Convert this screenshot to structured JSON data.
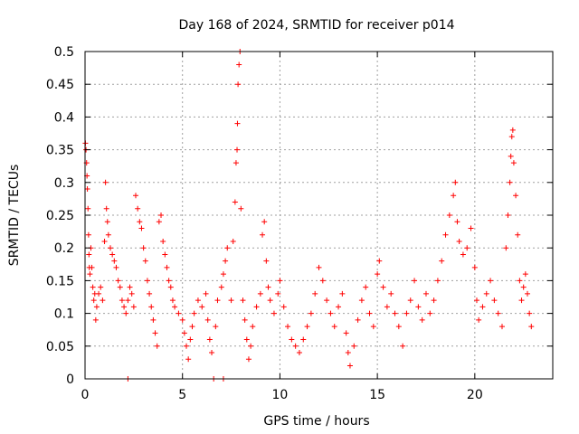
{
  "chart_data": {
    "type": "scatter",
    "title": "Day 168 of 2024, SRMTID for receiver p014",
    "xlabel": "GPS time / hours",
    "ylabel": "SRMTID / TECUs",
    "xlim": [
      0,
      24
    ],
    "ylim": [
      0,
      0.5
    ],
    "grid": true,
    "marker": "plus",
    "marker_color": "#ff0000",
    "x_ticks": [
      {
        "value": 0,
        "label": "0"
      },
      {
        "value": 5,
        "label": "5"
      },
      {
        "value": 10,
        "label": "10"
      },
      {
        "value": 15,
        "label": "15"
      },
      {
        "value": 20,
        "label": "20"
      }
    ],
    "y_ticks": [
      {
        "value": 0,
        "label": "0"
      },
      {
        "value": 0.05,
        "label": "0.05"
      },
      {
        "value": 0.1,
        "label": "0.1"
      },
      {
        "value": 0.15,
        "label": "0.15"
      },
      {
        "value": 0.2,
        "label": "0.2"
      },
      {
        "value": 0.25,
        "label": "0.25"
      },
      {
        "value": 0.3,
        "label": "0.3"
      },
      {
        "value": 0.35,
        "label": "0.35"
      },
      {
        "value": 0.4,
        "label": "0.4"
      },
      {
        "value": 0.45,
        "label": "0.45"
      },
      {
        "value": 0.5,
        "label": "0.5"
      }
    ],
    "series": [
      {
        "name": "SRMTID",
        "points": [
          [
            0.02,
            0.36
          ],
          [
            0.05,
            0.35
          ],
          [
            0.08,
            0.33
          ],
          [
            0.1,
            0.31
          ],
          [
            0.12,
            0.29
          ],
          [
            0.15,
            0.26
          ],
          [
            0.18,
            0.22
          ],
          [
            0.2,
            0.19
          ],
          [
            0.22,
            0.17
          ],
          [
            0.25,
            0.16
          ],
          [
            0.3,
            0.2
          ],
          [
            0.35,
            0.17
          ],
          [
            0.4,
            0.14
          ],
          [
            0.45,
            0.12
          ],
          [
            0.5,
            0.13
          ],
          [
            0.55,
            0.09
          ],
          [
            0.6,
            0.11
          ],
          [
            0.7,
            0.13
          ],
          [
            0.8,
            0.14
          ],
          [
            0.9,
            0.12
          ],
          [
            1.0,
            0.21
          ],
          [
            1.05,
            0.3
          ],
          [
            1.1,
            0.26
          ],
          [
            1.15,
            0.24
          ],
          [
            1.2,
            0.22
          ],
          [
            1.3,
            0.2
          ],
          [
            1.4,
            0.19
          ],
          [
            1.5,
            0.18
          ],
          [
            1.6,
            0.17
          ],
          [
            1.7,
            0.15
          ],
          [
            1.8,
            0.14
          ],
          [
            1.9,
            0.12
          ],
          [
            2.0,
            0.11
          ],
          [
            2.1,
            0.1
          ],
          [
            2.2,
            0.12
          ],
          [
            2.3,
            0.14
          ],
          [
            2.2,
            0.0
          ],
          [
            2.4,
            0.13
          ],
          [
            2.5,
            0.11
          ],
          [
            2.6,
            0.28
          ],
          [
            2.7,
            0.26
          ],
          [
            2.8,
            0.24
          ],
          [
            2.9,
            0.23
          ],
          [
            3.0,
            0.2
          ],
          [
            3.1,
            0.18
          ],
          [
            3.2,
            0.15
          ],
          [
            3.3,
            0.13
          ],
          [
            3.4,
            0.11
          ],
          [
            3.5,
            0.09
          ],
          [
            3.6,
            0.07
          ],
          [
            3.7,
            0.05
          ],
          [
            3.8,
            0.24
          ],
          [
            3.9,
            0.25
          ],
          [
            4.0,
            0.21
          ],
          [
            4.1,
            0.19
          ],
          [
            4.2,
            0.17
          ],
          [
            4.3,
            0.15
          ],
          [
            4.4,
            0.14
          ],
          [
            4.5,
            0.12
          ],
          [
            4.6,
            0.11
          ],
          [
            4.8,
            0.1
          ],
          [
            5.0,
            0.09
          ],
          [
            5.1,
            0.07
          ],
          [
            5.2,
            0.05
          ],
          [
            5.3,
            0.03
          ],
          [
            5.4,
            0.06
          ],
          [
            5.5,
            0.08
          ],
          [
            5.6,
            0.1
          ],
          [
            5.8,
            0.12
          ],
          [
            6.0,
            0.11
          ],
          [
            6.2,
            0.13
          ],
          [
            6.3,
            0.09
          ],
          [
            6.4,
            0.06
          ],
          [
            6.5,
            0.04
          ],
          [
            6.6,
            0.0
          ],
          [
            6.7,
            0.08
          ],
          [
            6.8,
            0.12
          ],
          [
            7.0,
            0.14
          ],
          [
            7.1,
            0.16
          ],
          [
            7.2,
            0.18
          ],
          [
            7.3,
            0.2
          ],
          [
            7.1,
            0.0
          ],
          [
            7.5,
            0.12
          ],
          [
            7.6,
            0.21
          ],
          [
            7.7,
            0.27
          ],
          [
            7.75,
            0.33
          ],
          [
            7.8,
            0.35
          ],
          [
            7.82,
            0.39
          ],
          [
            7.85,
            0.45
          ],
          [
            7.9,
            0.48
          ],
          [
            7.95,
            0.5
          ],
          [
            8.0,
            0.26
          ],
          [
            8.1,
            0.12
          ],
          [
            8.2,
            0.09
          ],
          [
            8.3,
            0.06
          ],
          [
            8.4,
            0.03
          ],
          [
            8.5,
            0.05
          ],
          [
            8.6,
            0.08
          ],
          [
            8.8,
            0.11
          ],
          [
            9.0,
            0.13
          ],
          [
            9.1,
            0.22
          ],
          [
            9.2,
            0.24
          ],
          [
            9.3,
            0.18
          ],
          [
            9.4,
            0.14
          ],
          [
            9.5,
            0.12
          ],
          [
            9.7,
            0.1
          ],
          [
            9.9,
            0.13
          ],
          [
            10.0,
            0.15
          ],
          [
            10.2,
            0.11
          ],
          [
            10.4,
            0.08
          ],
          [
            10.6,
            0.06
          ],
          [
            10.8,
            0.05
          ],
          [
            11.0,
            0.04
          ],
          [
            11.2,
            0.06
          ],
          [
            11.4,
            0.08
          ],
          [
            11.6,
            0.1
          ],
          [
            11.8,
            0.13
          ],
          [
            12.0,
            0.17
          ],
          [
            12.2,
            0.15
          ],
          [
            12.4,
            0.12
          ],
          [
            12.6,
            0.1
          ],
          [
            12.8,
            0.08
          ],
          [
            13.0,
            0.11
          ],
          [
            13.2,
            0.13
          ],
          [
            13.4,
            0.07
          ],
          [
            13.5,
            0.04
          ],
          [
            13.6,
            0.02
          ],
          [
            13.8,
            0.05
          ],
          [
            14.0,
            0.09
          ],
          [
            14.2,
            0.12
          ],
          [
            14.4,
            0.14
          ],
          [
            14.6,
            0.1
          ],
          [
            14.8,
            0.08
          ],
          [
            15.0,
            0.16
          ],
          [
            15.1,
            0.18
          ],
          [
            15.3,
            0.14
          ],
          [
            15.5,
            0.11
          ],
          [
            15.7,
            0.13
          ],
          [
            15.9,
            0.1
          ],
          [
            16.1,
            0.08
          ],
          [
            16.3,
            0.05
          ],
          [
            16.5,
            0.1
          ],
          [
            16.7,
            0.12
          ],
          [
            16.9,
            0.15
          ],
          [
            17.1,
            0.11
          ],
          [
            17.3,
            0.09
          ],
          [
            17.5,
            0.13
          ],
          [
            17.7,
            0.1
          ],
          [
            17.9,
            0.12
          ],
          [
            18.1,
            0.15
          ],
          [
            18.3,
            0.18
          ],
          [
            18.5,
            0.22
          ],
          [
            18.7,
            0.25
          ],
          [
            18.9,
            0.28
          ],
          [
            19.0,
            0.3
          ],
          [
            19.1,
            0.24
          ],
          [
            19.2,
            0.21
          ],
          [
            19.4,
            0.19
          ],
          [
            19.6,
            0.2
          ],
          [
            19.8,
            0.23
          ],
          [
            20.0,
            0.17
          ],
          [
            20.1,
            0.12
          ],
          [
            20.2,
            0.09
          ],
          [
            20.4,
            0.11
          ],
          [
            20.6,
            0.13
          ],
          [
            20.8,
            0.15
          ],
          [
            21.0,
            0.12
          ],
          [
            21.2,
            0.1
          ],
          [
            21.4,
            0.08
          ],
          [
            21.6,
            0.2
          ],
          [
            21.7,
            0.25
          ],
          [
            21.8,
            0.3
          ],
          [
            21.85,
            0.34
          ],
          [
            21.9,
            0.37
          ],
          [
            21.95,
            0.38
          ],
          [
            22.0,
            0.33
          ],
          [
            22.1,
            0.28
          ],
          [
            22.2,
            0.22
          ],
          [
            22.3,
            0.15
          ],
          [
            22.4,
            0.12
          ],
          [
            22.5,
            0.14
          ],
          [
            22.6,
            0.16
          ],
          [
            22.7,
            0.13
          ],
          [
            22.8,
            0.1
          ],
          [
            22.9,
            0.08
          ]
        ]
      }
    ]
  }
}
